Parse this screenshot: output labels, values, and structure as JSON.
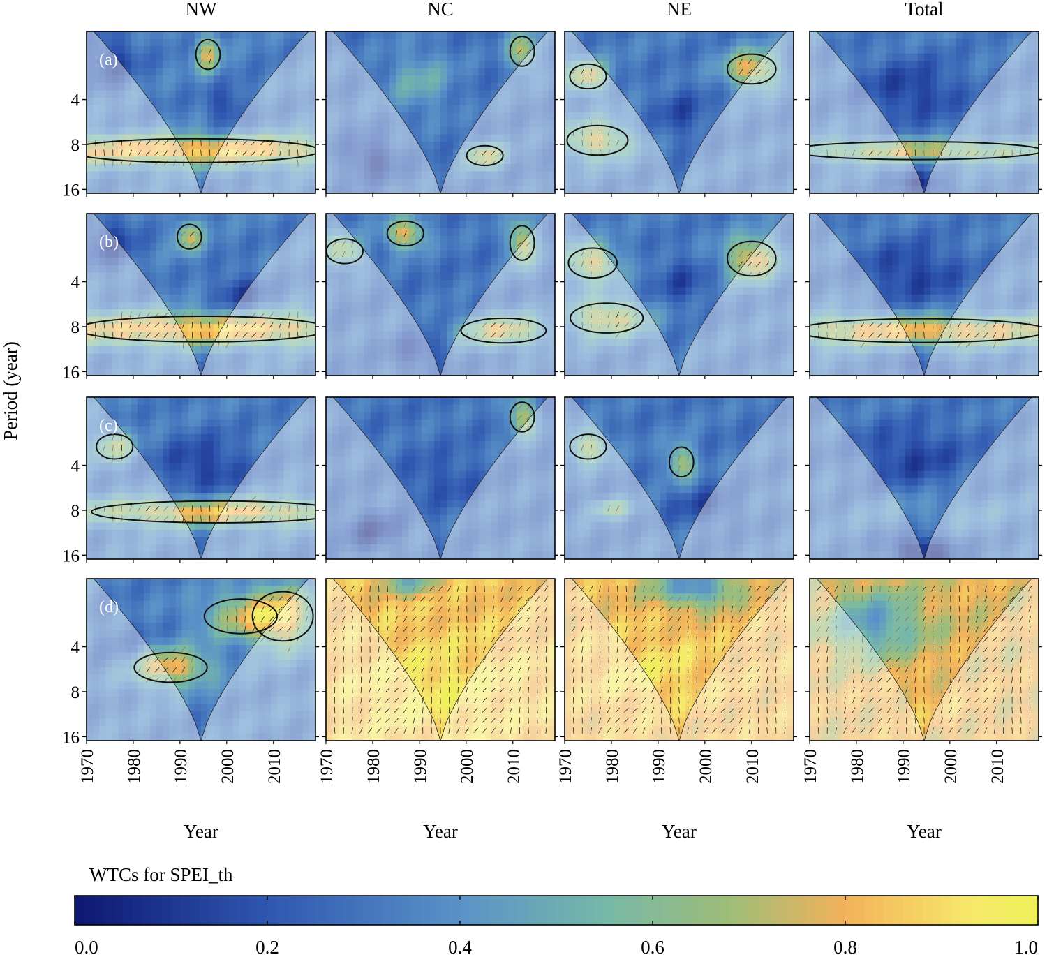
{
  "chart_data": {
    "type": "heatmap",
    "title": "",
    "columns": [
      "NW",
      "NC",
      "NE",
      "Total"
    ],
    "rows": [
      "(a)",
      "(b)",
      "(c)",
      "(d)"
    ],
    "xlabel": "Year",
    "ylabel": "Period (year)",
    "x_ticks": [
      1970,
      1980,
      1990,
      2000,
      2010
    ],
    "xlim": [
      1970,
      2019
    ],
    "y_ticks": [
      4,
      8,
      16
    ],
    "ylim": [
      1.4,
      17
    ],
    "y_scale": "log2",
    "y_inverted": true,
    "colorbar": {
      "label": "WTCs for SPEI_th",
      "ticks": [
        0.0,
        0.2,
        0.4,
        0.6,
        0.8,
        1.0
      ],
      "range": [
        0,
        1
      ],
      "stops": [
        "#0d1770",
        "#2f57b0",
        "#5a92c8",
        "#76b8a9",
        "#9ebd78",
        "#f3b25a",
        "#f6e86a",
        "#eef05a"
      ]
    },
    "panels": [
      {
        "row": 0,
        "col": 0,
        "base": 0.33,
        "features": [
          {
            "x": 1993,
            "p": 8.8,
            "sx": 30,
            "sy": 0.24,
            "a": 0.55
          },
          {
            "x": 1975,
            "p": 2.2,
            "sx": 4,
            "sy": 0.4,
            "a": -0.2
          },
          {
            "x": 2000,
            "p": 4.5,
            "sx": 3,
            "sy": 0.3,
            "a": -0.18
          },
          {
            "x": 1996,
            "p": 2.0,
            "sx": 2,
            "sy": 0.3,
            "a": 0.4
          }
        ]
      },
      {
        "row": 0,
        "col": 1,
        "base": 0.3,
        "features": [
          {
            "x": 1990,
            "p": 3.0,
            "sx": 5,
            "sy": 0.5,
            "a": 0.2
          },
          {
            "x": 1980,
            "p": 10,
            "sx": 4,
            "sy": 0.3,
            "a": -0.2
          },
          {
            "x": 2004,
            "p": 9.5,
            "sx": 3,
            "sy": 0.2,
            "a": 0.45
          },
          {
            "x": 2012,
            "p": 1.9,
            "sx": 2,
            "sy": 0.3,
            "a": 0.45
          }
        ]
      },
      {
        "row": 0,
        "col": 2,
        "base": 0.32,
        "features": [
          {
            "x": 1977,
            "p": 7.5,
            "sx": 5,
            "sy": 0.3,
            "a": 0.45
          },
          {
            "x": 1975,
            "p": 2.8,
            "sx": 3,
            "sy": 0.25,
            "a": 0.45
          },
          {
            "x": 2010,
            "p": 2.5,
            "sx": 4,
            "sy": 0.3,
            "a": 0.5
          },
          {
            "x": 1995,
            "p": 5.0,
            "sx": 4,
            "sy": 0.4,
            "a": -0.15
          }
        ]
      },
      {
        "row": 0,
        "col": 3,
        "base": 0.33,
        "features": [
          {
            "x": 1993,
            "p": 8.8,
            "sx": 22,
            "sy": 0.18,
            "a": 0.4
          },
          {
            "x": 1992,
            "p": 3.5,
            "sx": 8,
            "sy": 0.5,
            "a": -0.2
          },
          {
            "x": 1994,
            "p": 15,
            "sx": 4,
            "sy": 0.2,
            "a": -0.25
          }
        ]
      },
      {
        "row": 1,
        "col": 0,
        "base": 0.33,
        "features": [
          {
            "x": 1995,
            "p": 8.3,
            "sx": 30,
            "sy": 0.26,
            "a": 0.55
          },
          {
            "x": 1975,
            "p": 2.2,
            "sx": 4,
            "sy": 0.4,
            "a": -0.2
          },
          {
            "x": 2003,
            "p": 4.8,
            "sx": 4,
            "sy": 0.3,
            "a": -0.2
          },
          {
            "x": 1992,
            "p": 2.0,
            "sx": 2,
            "sy": 0.25,
            "a": 0.4
          }
        ]
      },
      {
        "row": 1,
        "col": 1,
        "base": 0.3,
        "features": [
          {
            "x": 2008,
            "p": 8.5,
            "sx": 7,
            "sy": 0.25,
            "a": 0.45
          },
          {
            "x": 1987,
            "p": 1.9,
            "sx": 3,
            "sy": 0.25,
            "a": 0.5
          },
          {
            "x": 2012,
            "p": 2.2,
            "sx": 2,
            "sy": 0.35,
            "a": 0.5
          },
          {
            "x": 1974,
            "p": 2.5,
            "sx": 3,
            "sy": 0.25,
            "a": 0.4
          },
          {
            "x": 1990,
            "p": 12,
            "sx": 4,
            "sy": 0.3,
            "a": -0.15
          }
        ]
      },
      {
        "row": 1,
        "col": 2,
        "base": 0.32,
        "features": [
          {
            "x": 1979,
            "p": 7.0,
            "sx": 6,
            "sy": 0.3,
            "a": 0.45
          },
          {
            "x": 1976,
            "p": 3.0,
            "sx": 4,
            "sy": 0.3,
            "a": 0.45
          },
          {
            "x": 2010,
            "p": 2.8,
            "sx": 4,
            "sy": 0.35,
            "a": 0.5
          },
          {
            "x": 1995,
            "p": 4.0,
            "sx": 4,
            "sy": 0.4,
            "a": -0.15
          }
        ]
      },
      {
        "row": 1,
        "col": 3,
        "base": 0.33,
        "features": [
          {
            "x": 1994,
            "p": 8.5,
            "sx": 28,
            "sy": 0.24,
            "a": 0.5
          },
          {
            "x": 1992,
            "p": 3.5,
            "sx": 8,
            "sy": 0.5,
            "a": -0.2
          },
          {
            "x": 1994,
            "p": 15,
            "sx": 4,
            "sy": 0.2,
            "a": -0.15
          }
        ]
      },
      {
        "row": 2,
        "col": 0,
        "base": 0.33,
        "features": [
          {
            "x": 1998,
            "p": 8.2,
            "sx": 22,
            "sy": 0.22,
            "a": 0.5
          },
          {
            "x": 1976,
            "p": 3.0,
            "sx": 3,
            "sy": 0.25,
            "a": 0.35
          },
          {
            "x": 1995,
            "p": 4.0,
            "sx": 7,
            "sy": 0.45,
            "a": -0.2
          }
        ]
      },
      {
        "row": 2,
        "col": 1,
        "base": 0.3,
        "features": [
          {
            "x": 2012,
            "p": 1.9,
            "sx": 2,
            "sy": 0.3,
            "a": 0.45
          },
          {
            "x": 1980,
            "p": 11,
            "sx": 4,
            "sy": 0.3,
            "a": -0.2
          },
          {
            "x": 1995,
            "p": 5.0,
            "sx": 6,
            "sy": 0.4,
            "a": -0.1
          }
        ]
      },
      {
        "row": 2,
        "col": 2,
        "base": 0.31,
        "features": [
          {
            "x": 1975,
            "p": 3.0,
            "sx": 3,
            "sy": 0.25,
            "a": 0.4
          },
          {
            "x": 1995,
            "p": 3.8,
            "sx": 2,
            "sy": 0.3,
            "a": 0.4
          },
          {
            "x": 1980,
            "p": 7.8,
            "sx": 3,
            "sy": 0.15,
            "a": 0.3
          },
          {
            "x": 2000,
            "p": 7.5,
            "sx": 5,
            "sy": 0.3,
            "a": -0.15
          }
        ]
      },
      {
        "row": 2,
        "col": 3,
        "base": 0.32,
        "features": [
          {
            "x": 1994,
            "p": 15,
            "sx": 5,
            "sy": 0.25,
            "a": -0.3
          },
          {
            "x": 1992,
            "p": 3.5,
            "sx": 8,
            "sy": 0.5,
            "a": -0.18
          },
          {
            "x": 1998,
            "p": 8.0,
            "sx": 12,
            "sy": 0.3,
            "a": 0.1
          }
        ]
      },
      {
        "row": 3,
        "col": 0,
        "base": 0.33,
        "features": [
          {
            "x": 1988,
            "p": 5.5,
            "sx": 6,
            "sy": 0.3,
            "a": 0.5
          },
          {
            "x": 2003,
            "p": 2.5,
            "sx": 6,
            "sy": 0.35,
            "a": 0.35
          },
          {
            "x": 2012,
            "p": 2.5,
            "sx": 5,
            "sy": 0.5,
            "a": 0.5
          },
          {
            "x": 1978,
            "p": 4.0,
            "sx": 4,
            "sy": 0.4,
            "a": -0.1
          }
        ]
      },
      {
        "row": 3,
        "col": 1,
        "base": 0.84,
        "features": [
          {
            "x": 1994,
            "p": 8.0,
            "sx": 14,
            "sy": 0.8,
            "a": 0.1
          },
          {
            "x": 1988,
            "p": 1.5,
            "sx": 4,
            "sy": 0.2,
            "a": -0.3
          }
        ]
      },
      {
        "row": 3,
        "col": 2,
        "base": 0.82,
        "features": [
          {
            "x": 1998,
            "p": 1.6,
            "sx": 6,
            "sy": 0.3,
            "a": -0.45
          },
          {
            "x": 1988,
            "p": 6.0,
            "sx": 10,
            "sy": 0.6,
            "a": 0.1
          }
        ]
      },
      {
        "row": 3,
        "col": 3,
        "base": 0.78,
        "features": [
          {
            "x": 1984,
            "p": 2.8,
            "sx": 7,
            "sy": 0.5,
            "a": -0.35
          },
          {
            "x": 1996,
            "p": 10,
            "sx": 10,
            "sy": 0.5,
            "a": 0.05
          }
        ]
      }
    ]
  }
}
